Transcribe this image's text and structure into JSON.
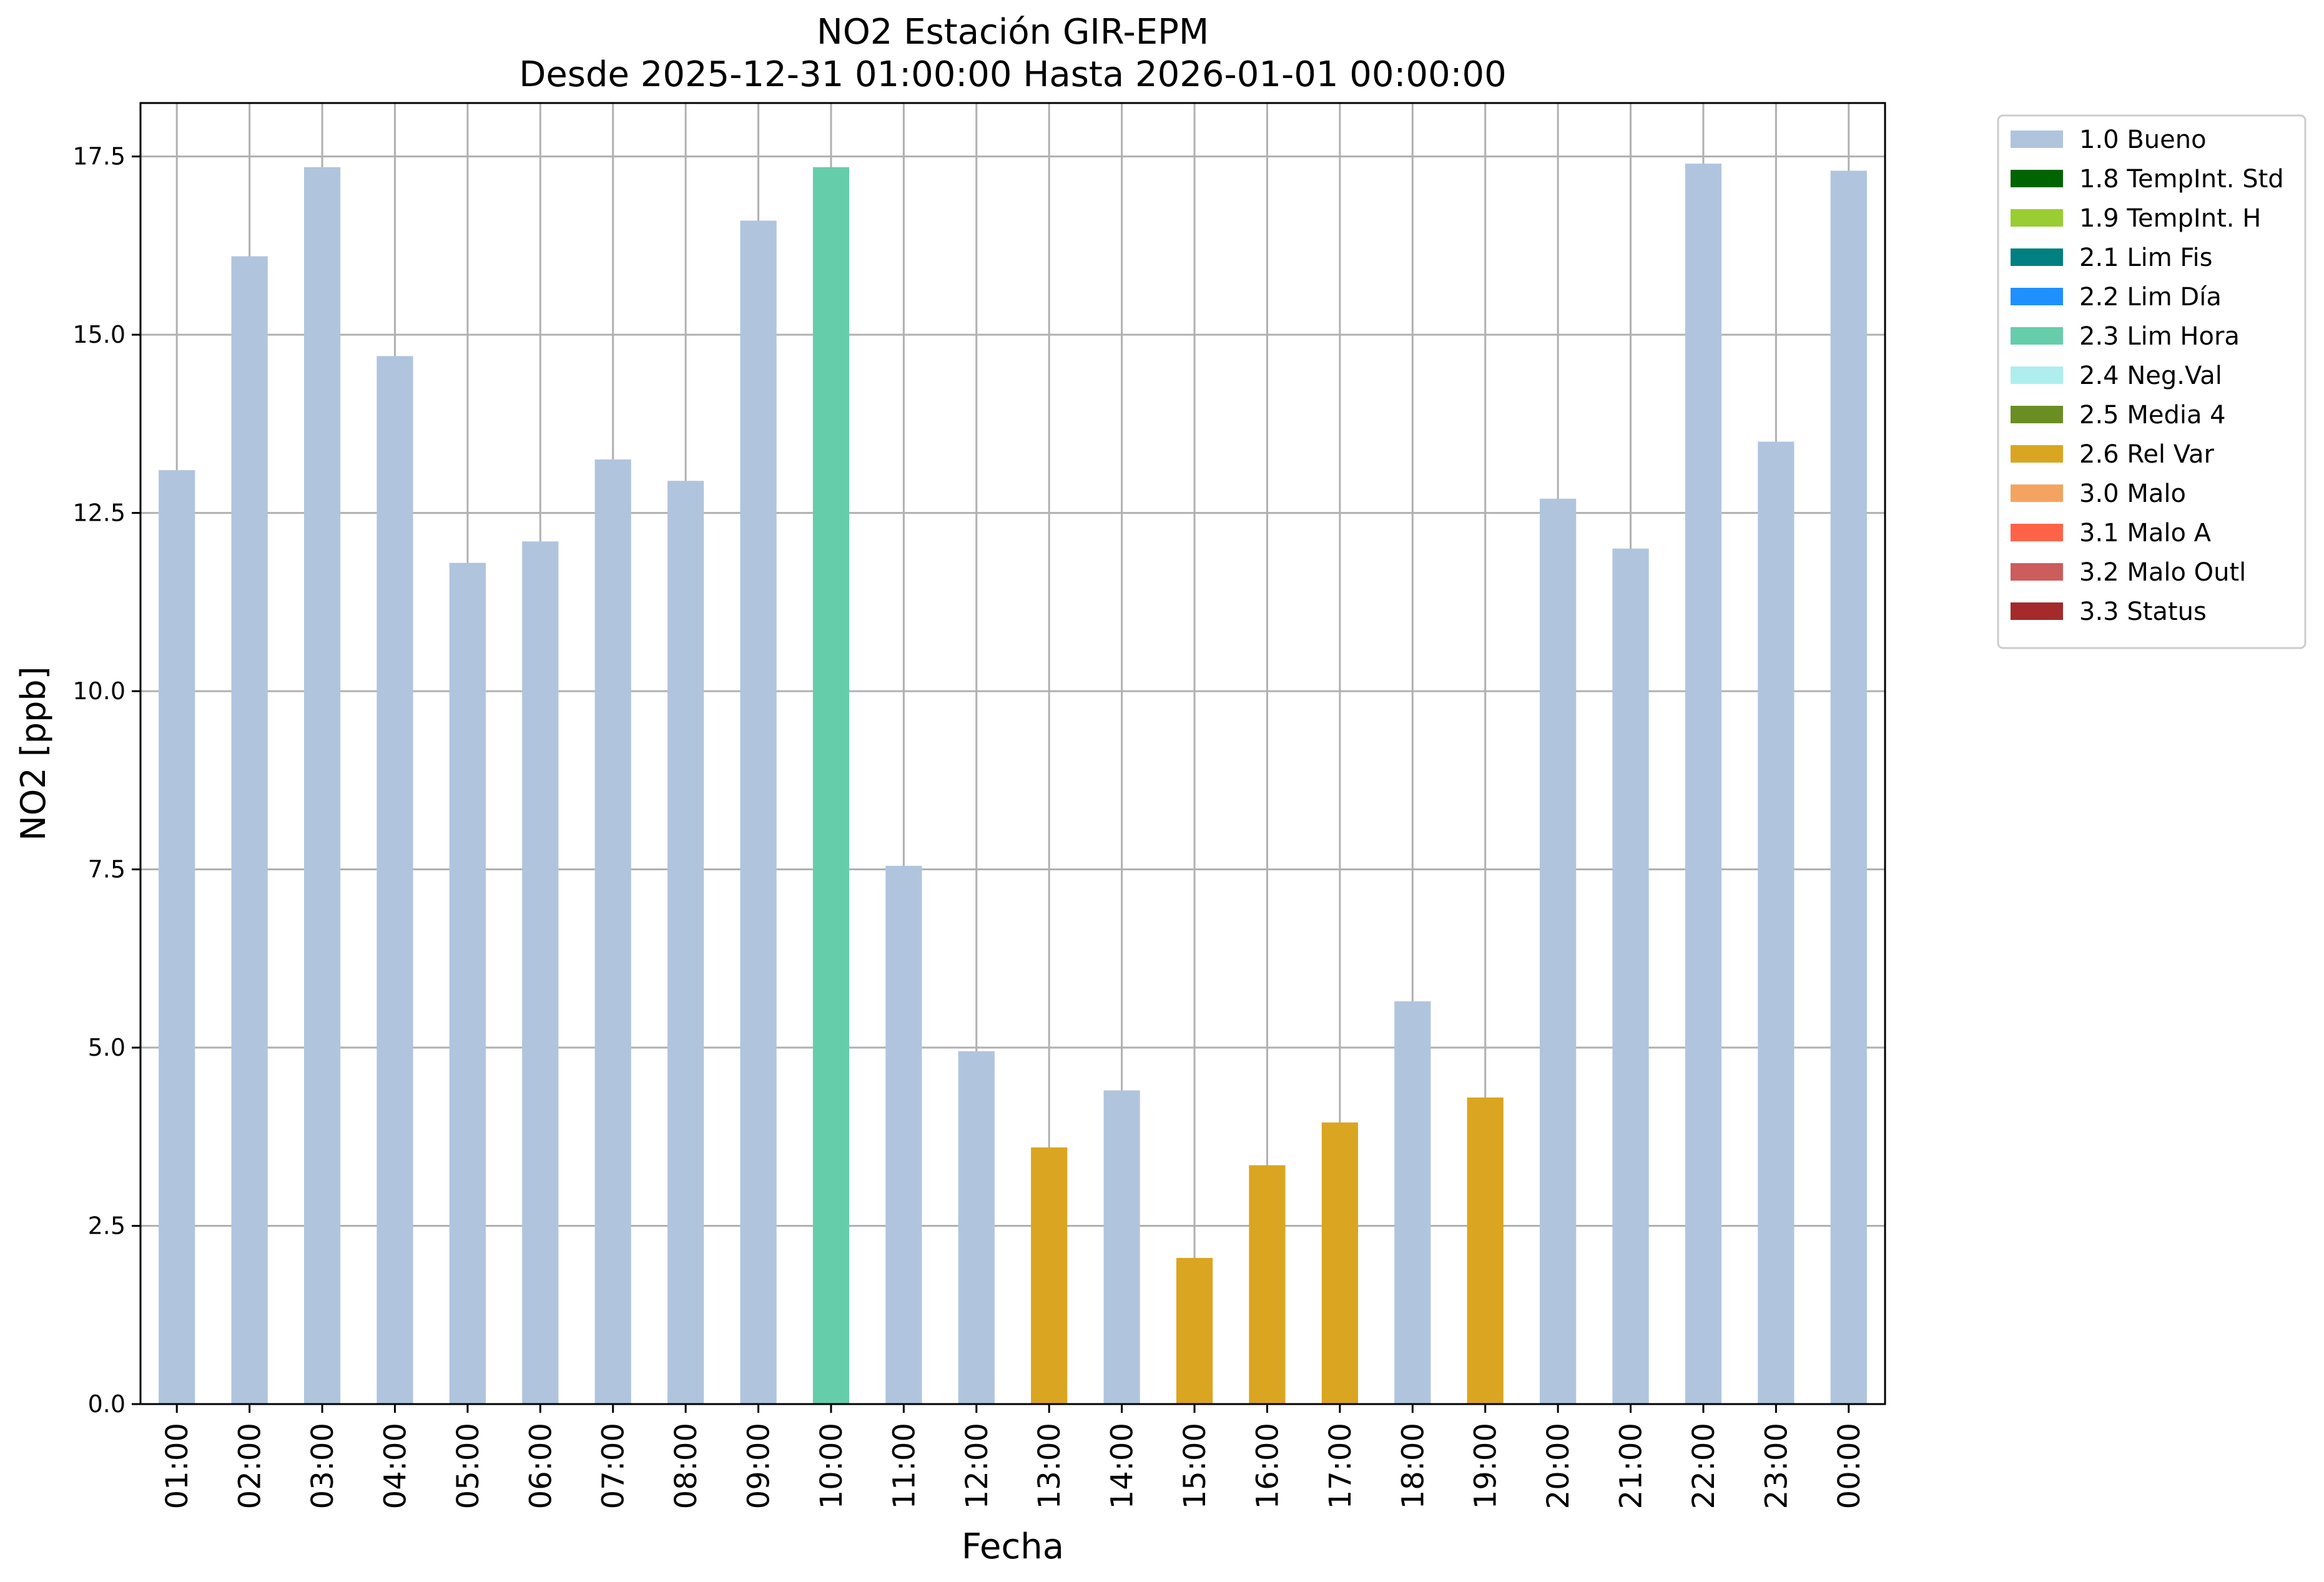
{
  "chart_data": {
    "type": "bar",
    "title": "NO2 Estación GIR-EPM",
    "subtitle": "Desde 2025-12-31 01:00:00 Hasta 2026-01-01 00:00:00",
    "xlabel": "Fecha",
    "ylabel": "NO2 [ppb]",
    "ylim": [
      0,
      18.25
    ],
    "yticks": [
      "0.0",
      "2.5",
      "5.0",
      "7.5",
      "10.0",
      "12.5",
      "15.0",
      "17.5"
    ],
    "grid": true,
    "legend_position": "outside-top-right",
    "categories": [
      "01:00",
      "02:00",
      "03:00",
      "04:00",
      "05:00",
      "06:00",
      "07:00",
      "08:00",
      "09:00",
      "10:00",
      "11:00",
      "12:00",
      "13:00",
      "14:00",
      "15:00",
      "16:00",
      "17:00",
      "18:00",
      "19:00",
      "20:00",
      "21:00",
      "22:00",
      "23:00",
      "00:00"
    ],
    "values": [
      13.1,
      16.1,
      17.35,
      14.7,
      11.8,
      12.1,
      13.25,
      12.95,
      16.6,
      17.35,
      7.55,
      4.95,
      3.6,
      4.4,
      2.05,
      3.35,
      3.95,
      5.65,
      4.3,
      12.7,
      12.0,
      17.4,
      13.5,
      17.3
    ],
    "flags": [
      "1.0 Bueno",
      "1.0 Bueno",
      "1.0 Bueno",
      "1.0 Bueno",
      "1.0 Bueno",
      "1.0 Bueno",
      "1.0 Bueno",
      "1.0 Bueno",
      "1.0 Bueno",
      "2.3 Lim Hora",
      "1.0 Bueno",
      "1.0 Bueno",
      "2.6 Rel Var",
      "1.0 Bueno",
      "2.6 Rel Var",
      "2.6 Rel Var",
      "2.6 Rel Var",
      "1.0 Bueno",
      "2.6 Rel Var",
      "1.0 Bueno",
      "1.0 Bueno",
      "1.0 Bueno",
      "1.0 Bueno",
      "1.0 Bueno"
    ],
    "legend": [
      {
        "label": "1.0 Bueno",
        "color": "#b0c4de"
      },
      {
        "label": "1.8 TempInt. Std",
        "color": "#006400"
      },
      {
        "label": "1.9 TempInt. H",
        "color": "#9acd32"
      },
      {
        "label": "2.1 Lim Fis",
        "color": "#008080"
      },
      {
        "label": "2.2 Lim Día",
        "color": "#1e90ff"
      },
      {
        "label": "2.3 Lim Hora",
        "color": "#66cdaa"
      },
      {
        "label": "2.4 Neg.Val",
        "color": "#afeeee"
      },
      {
        "label": "2.5 Media 4",
        "color": "#6b8e23"
      },
      {
        "label": "2.6 Rel Var",
        "color": "#daa520"
      },
      {
        "label": "3.0 Malo",
        "color": "#f4a460"
      },
      {
        "label": "3.1 Malo A",
        "color": "#ff6347"
      },
      {
        "label": "3.2 Malo Outl",
        "color": "#cd5c5c"
      },
      {
        "label": "3.3 Status",
        "color": "#a52a2a"
      }
    ]
  }
}
